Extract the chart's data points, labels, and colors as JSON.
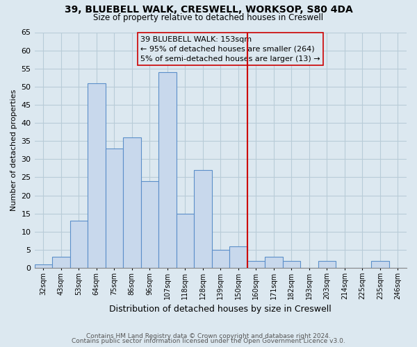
{
  "title1": "39, BLUEBELL WALK, CRESWELL, WORKSOP, S80 4DA",
  "title2": "Size of property relative to detached houses in Creswell",
  "xlabel": "Distribution of detached houses by size in Creswell",
  "ylabel": "Number of detached properties",
  "footer1": "Contains HM Land Registry data © Crown copyright and database right 2024.",
  "footer2": "Contains public sector information licensed under the Open Government Licence v3.0.",
  "bin_labels": [
    "32sqm",
    "43sqm",
    "53sqm",
    "64sqm",
    "75sqm",
    "86sqm",
    "96sqm",
    "107sqm",
    "118sqm",
    "128sqm",
    "139sqm",
    "150sqm",
    "160sqm",
    "171sqm",
    "182sqm",
    "193sqm",
    "203sqm",
    "214sqm",
    "225sqm",
    "235sqm",
    "246sqm"
  ],
  "bar_values": [
    1,
    3,
    13,
    51,
    33,
    36,
    24,
    54,
    15,
    27,
    5,
    6,
    2,
    3,
    2,
    0,
    2,
    0,
    0,
    2,
    0
  ],
  "bar_color": "#c8d8ec",
  "bar_edge_color": "#5b8fc9",
  "vline_color": "#cc0000",
  "annotation_title": "39 BLUEBELL WALK: 153sqm",
  "annotation_line1": "← 95% of detached houses are smaller (264)",
  "annotation_line2": "5% of semi-detached houses are larger (13) →",
  "ylim": [
    0,
    65
  ],
  "yticks": [
    0,
    5,
    10,
    15,
    20,
    25,
    30,
    35,
    40,
    45,
    50,
    55,
    60,
    65
  ],
  "bg_color": "#dce8f0",
  "plot_bg_color": "#dce8f0",
  "grid_color": "#b8ccd8"
}
